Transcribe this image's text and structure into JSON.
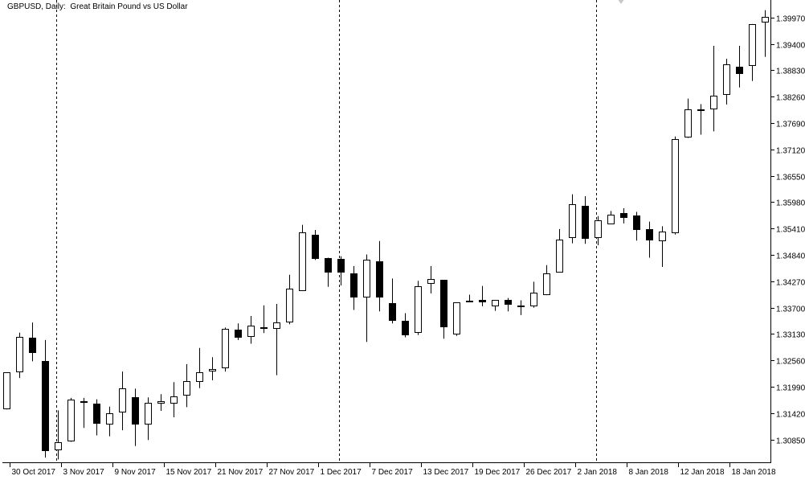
{
  "window": {
    "title": "GBPUSD, Daily:  Great Britain Pound vs US Dollar"
  },
  "colors": {
    "background": "#ffffff",
    "axis": "#000000",
    "bull_body": "#ffffff",
    "bear_body": "#000000",
    "separator": "#000000"
  },
  "chart_data": {
    "type": "candlestick",
    "symbol": "GBPUSD",
    "timeframe": "Daily",
    "description": "Great Britain Pound vs US Dollar",
    "ylim": [
      1.3034,
      1.4035
    ],
    "grid": false,
    "period_separators": true,
    "y_ticks": [
      "1.39970",
      "1.39400",
      "1.38830",
      "1.38260",
      "1.37690",
      "1.37120",
      "1.36550",
      "1.35980",
      "1.35410",
      "1.34840",
      "1.34270",
      "1.33700",
      "1.33130",
      "1.32560",
      "1.31990",
      "1.31420",
      "1.30850"
    ],
    "x_labels": [
      {
        "label": "30 Oct 2017",
        "index": 1
      },
      {
        "label": "3 Nov 2017",
        "index": 5
      },
      {
        "label": "9 Nov 2017",
        "index": 9
      },
      {
        "label": "15 Nov 2017",
        "index": 13
      },
      {
        "label": "21 Nov 2017",
        "index": 17
      },
      {
        "label": "27 Nov 2017",
        "index": 21
      },
      {
        "label": "1 Dec 2017",
        "index": 25
      },
      {
        "label": "7 Dec 2017",
        "index": 29
      },
      {
        "label": "13 Dec 2017",
        "index": 33
      },
      {
        "label": "19 Dec 2017",
        "index": 37
      },
      {
        "label": "26 Dec 2017",
        "index": 41
      },
      {
        "label": "2 Jan 2018",
        "index": 45
      },
      {
        "label": "8 Jan 2018",
        "index": 49
      },
      {
        "label": "12 Jan 2018",
        "index": 53
      },
      {
        "label": "18 Jan 2018",
        "index": 57
      }
    ],
    "separator_indices": [
      2,
      24,
      44
    ],
    "candles": [
      {
        "o": 1.315,
        "h": 1.323,
        "l": 1.315,
        "c": 1.323
      },
      {
        "o": 1.323,
        "h": 1.3316,
        "l": 1.3218,
        "c": 1.3307
      },
      {
        "o": 1.3305,
        "h": 1.3338,
        "l": 1.3254,
        "c": 1.3272
      },
      {
        "o": 1.3254,
        "h": 1.33,
        "l": 1.3046,
        "c": 1.306
      },
      {
        "o": 1.3062,
        "h": 1.3148,
        "l": 1.3042,
        "c": 1.308
      },
      {
        "o": 1.308,
        "h": 1.3175,
        "l": 1.308,
        "c": 1.3171
      },
      {
        "o": 1.3164,
        "h": 1.3175,
        "l": 1.311,
        "c": 1.3168
      },
      {
        "o": 1.3162,
        "h": 1.3172,
        "l": 1.3094,
        "c": 1.3118
      },
      {
        "o": 1.3117,
        "h": 1.3156,
        "l": 1.3092,
        "c": 1.3142
      },
      {
        "o": 1.3142,
        "h": 1.3232,
        "l": 1.3105,
        "c": 1.3195
      },
      {
        "o": 1.3177,
        "h": 1.3195,
        "l": 1.3071,
        "c": 1.3118
      },
      {
        "o": 1.3118,
        "h": 1.3176,
        "l": 1.3084,
        "c": 1.3165
      },
      {
        "o": 1.3163,
        "h": 1.3183,
        "l": 1.3147,
        "c": 1.3168
      },
      {
        "o": 1.3164,
        "h": 1.3209,
        "l": 1.3133,
        "c": 1.3179
      },
      {
        "o": 1.3179,
        "h": 1.3248,
        "l": 1.3155,
        "c": 1.3211
      },
      {
        "o": 1.321,
        "h": 1.3283,
        "l": 1.3196,
        "c": 1.3231
      },
      {
        "o": 1.3231,
        "h": 1.3263,
        "l": 1.3213,
        "c": 1.3237
      },
      {
        "o": 1.324,
        "h": 1.3327,
        "l": 1.3232,
        "c": 1.3325
      },
      {
        "o": 1.3323,
        "h": 1.3336,
        "l": 1.33,
        "c": 1.3306
      },
      {
        "o": 1.3306,
        "h": 1.3352,
        "l": 1.3292,
        "c": 1.3331
      },
      {
        "o": 1.3327,
        "h": 1.3375,
        "l": 1.3315,
        "c": 1.3323
      },
      {
        "o": 1.3324,
        "h": 1.3378,
        "l": 1.3224,
        "c": 1.3338
      },
      {
        "o": 1.3338,
        "h": 1.3441,
        "l": 1.3334,
        "c": 1.3411
      },
      {
        "o": 1.3406,
        "h": 1.3549,
        "l": 1.3406,
        "c": 1.3532
      },
      {
        "o": 1.3528,
        "h": 1.3538,
        "l": 1.3473,
        "c": 1.3475
      },
      {
        "o": 1.3478,
        "h": 1.3478,
        "l": 1.3415,
        "c": 1.3447
      },
      {
        "o": 1.3475,
        "h": 1.3481,
        "l": 1.3418,
        "c": 1.3445
      },
      {
        "o": 1.3445,
        "h": 1.346,
        "l": 1.3365,
        "c": 1.3393
      },
      {
        "o": 1.3392,
        "h": 1.3485,
        "l": 1.3296,
        "c": 1.3473
      },
      {
        "o": 1.347,
        "h": 1.3514,
        "l": 1.3362,
        "c": 1.3392
      },
      {
        "o": 1.338,
        "h": 1.3433,
        "l": 1.3336,
        "c": 1.3341
      },
      {
        "o": 1.3342,
        "h": 1.3358,
        "l": 1.3306,
        "c": 1.3311
      },
      {
        "o": 1.3316,
        "h": 1.3428,
        "l": 1.3311,
        "c": 1.3416
      },
      {
        "o": 1.3422,
        "h": 1.346,
        "l": 1.3401,
        "c": 1.3432
      },
      {
        "o": 1.343,
        "h": 1.343,
        "l": 1.3303,
        "c": 1.3327
      },
      {
        "o": 1.3313,
        "h": 1.3381,
        "l": 1.3309,
        "c": 1.3382
      },
      {
        "o": 1.3385,
        "h": 1.3398,
        "l": 1.3385,
        "c": 1.3385
      },
      {
        "o": 1.3386,
        "h": 1.3417,
        "l": 1.3373,
        "c": 1.338
      },
      {
        "o": 1.3372,
        "h": 1.3385,
        "l": 1.3363,
        "c": 1.3386
      },
      {
        "o": 1.3386,
        "h": 1.3391,
        "l": 1.3362,
        "c": 1.3375
      },
      {
        "o": 1.3375,
        "h": 1.3386,
        "l": 1.3354,
        "c": 1.3375
      },
      {
        "o": 1.3373,
        "h": 1.3426,
        "l": 1.337,
        "c": 1.3403
      },
      {
        "o": 1.3397,
        "h": 1.3462,
        "l": 1.3397,
        "c": 1.3444
      },
      {
        "o": 1.3446,
        "h": 1.354,
        "l": 1.3446,
        "c": 1.3517
      },
      {
        "o": 1.352,
        "h": 1.3615,
        "l": 1.3509,
        "c": 1.3593
      },
      {
        "o": 1.359,
        "h": 1.3611,
        "l": 1.3508,
        "c": 1.3518
      },
      {
        "o": 1.352,
        "h": 1.3568,
        "l": 1.3505,
        "c": 1.3559
      },
      {
        "o": 1.3551,
        "h": 1.3579,
        "l": 1.3551,
        "c": 1.3571
      },
      {
        "o": 1.3575,
        "h": 1.3585,
        "l": 1.3552,
        "c": 1.3565
      },
      {
        "o": 1.357,
        "h": 1.3577,
        "l": 1.3515,
        "c": 1.3539
      },
      {
        "o": 1.3539,
        "h": 1.3556,
        "l": 1.3478,
        "c": 1.3514
      },
      {
        "o": 1.3515,
        "h": 1.3546,
        "l": 1.3458,
        "c": 1.3535
      },
      {
        "o": 1.3532,
        "h": 1.374,
        "l": 1.3528,
        "c": 1.3735
      },
      {
        "o": 1.3737,
        "h": 1.3822,
        "l": 1.3737,
        "c": 1.3798
      },
      {
        "o": 1.3798,
        "h": 1.381,
        "l": 1.3744,
        "c": 1.3796
      },
      {
        "o": 1.3798,
        "h": 1.3936,
        "l": 1.3751,
        "c": 1.3828
      },
      {
        "o": 1.383,
        "h": 1.3908,
        "l": 1.3809,
        "c": 1.3896
      },
      {
        "o": 1.3891,
        "h": 1.3936,
        "l": 1.3846,
        "c": 1.3875
      },
      {
        "o": 1.3892,
        "h": 1.3983,
        "l": 1.386,
        "c": 1.3982
      },
      {
        "o": 1.3987,
        "h": 1.4013,
        "l": 1.3912,
        "c": 1.3999
      }
    ]
  }
}
